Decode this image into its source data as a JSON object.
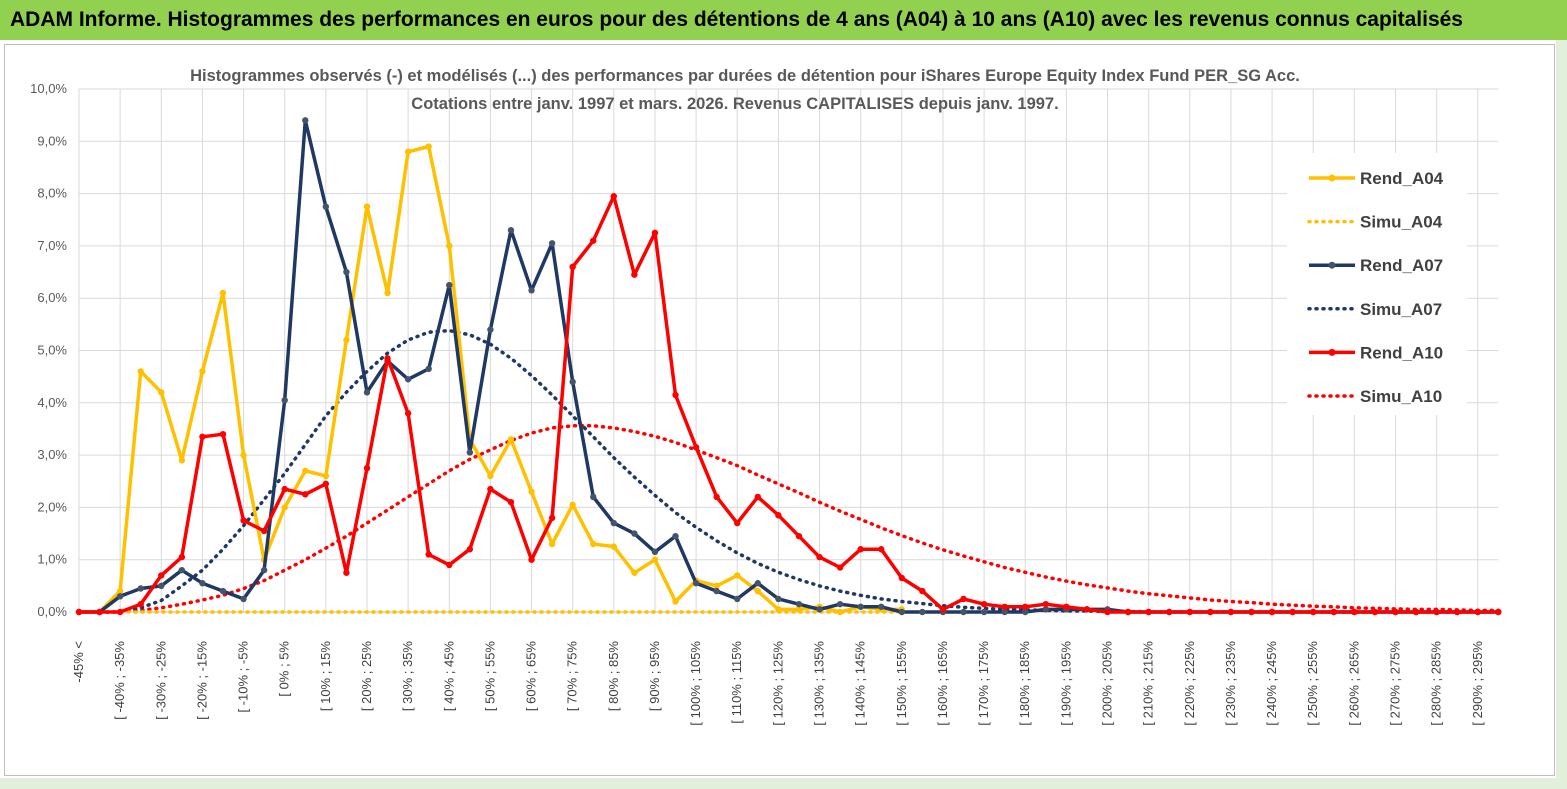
{
  "header": {
    "title": "ADAM Informe. Histogrammes des performances en euros pour des détentions de 4 ans (A04) à 10 ans (A10) avec les revenus connus capitalisés"
  },
  "colors": {
    "header_bg": "#92d050",
    "a04": "#ffc000",
    "a07": "#1f3864",
    "a10": "#ff0000",
    "grid": "#d9d9d9"
  },
  "chart_data": {
    "type": "line",
    "title": "Histogrammes observés (-) et modélisés (...) des performances par durées de détention pour iShares Europe Equity Index Fund PER_SG Acc.",
    "subtitle": "Cotations entre janv. 1997 et mars. 2026. Revenus CAPITALISES depuis janv. 1997.",
    "ylim": [
      0,
      10
    ],
    "yticks": [
      "0,0%",
      "1,0%",
      "2,0%",
      "3,0%",
      "4,0%",
      "5,0%",
      "6,0%",
      "7,0%",
      "8,0%",
      "9,0%",
      "10,0%"
    ],
    "x_tick_labels": [
      "-45% <",
      "[ -40% ; -35%",
      "[ -30% ; -25%",
      "[ -20% ; -15%",
      "[ -10% ; -5%",
      "[ 0% ; 5%",
      "[ 10% ; 15%",
      "[ 20% ; 25%",
      "[ 30% ; 35%",
      "[ 40% ; 45%",
      "[ 50% ; 55%",
      "[ 60% ; 65%",
      "[ 70% ; 75%",
      "[ 80% ; 85%",
      "[ 90% ; 95%",
      "[ 100% ; 105%",
      "[ 110% ; 115%",
      "[ 120% ; 125%",
      "[ 130% ; 135%",
      "[ 140% ; 145%",
      "[ 150% ; 155%",
      "[ 160% ; 165%",
      "[ 170% ; 175%",
      "[ 180% ; 185%",
      "[ 190% ; 195%",
      "[ 200% ; 205%",
      "[ 210% ; 215%",
      "[ 220% ; 225%",
      "[ 230% ; 235%",
      "[ 240% ; 245%",
      "[ 250% ; 255%",
      "[ 260% ; 265%",
      "[ 270% ; 275%",
      "[ 280% ; 285%",
      "[ 290% ; 295%"
    ],
    "x_range_pct": [
      -45,
      300
    ],
    "bin_width_pct": 5,
    "grid": true,
    "legend_position": "right",
    "series": [
      {
        "name": "Rend_A04",
        "style": "solid",
        "markers": true,
        "color": "#ffc000",
        "values": [
          0,
          0,
          0.4,
          4.6,
          4.2,
          2.9,
          4.6,
          6.1,
          3.0,
          1.0,
          2.0,
          2.7,
          2.6,
          5.2,
          7.75,
          6.1,
          8.8,
          8.9,
          7.0,
          3.3,
          2.6,
          3.3,
          2.3,
          1.3,
          2.05,
          1.3,
          1.25,
          0.75,
          1.0,
          0.2,
          0.6,
          0.5,
          0.7,
          0.4,
          0.05,
          0.05,
          0.1,
          0,
          0.1,
          0.05,
          0.05
        ]
      },
      {
        "name": "Simu_A04",
        "style": "dotted",
        "markers": false,
        "color": "#ffc000",
        "values": [
          0,
          0,
          0,
          0,
          0,
          0,
          0,
          0,
          0,
          0,
          0,
          0,
          0,
          0,
          0,
          0,
          0,
          0,
          0,
          0,
          0,
          0,
          0,
          0,
          0,
          0,
          0,
          0,
          0,
          0,
          0,
          0,
          0,
          0,
          0,
          0,
          0,
          0,
          0,
          0,
          0
        ]
      },
      {
        "name": "Rend_A07",
        "style": "solid",
        "markers": true,
        "color": "#1f3864",
        "values": [
          0,
          0,
          0.3,
          0.45,
          0.5,
          0.8,
          0.55,
          0.4,
          0.25,
          0.8,
          4.05,
          9.4,
          7.75,
          6.5,
          4.2,
          4.8,
          4.45,
          4.65,
          6.25,
          3.05,
          5.4,
          7.3,
          6.15,
          7.05,
          4.4,
          2.2,
          1.7,
          1.5,
          1.15,
          1.45,
          0.55,
          0.4,
          0.25,
          0.55,
          0.25,
          0.15,
          0.05,
          0.15,
          0.1,
          0.1,
          0,
          0,
          0,
          0,
          0,
          0,
          0,
          0.05,
          0.05,
          0.05,
          0.05,
          0,
          0,
          0,
          0,
          0,
          0,
          0,
          0,
          0,
          0,
          0,
          0,
          0,
          0,
          0,
          0,
          0,
          0,
          0
        ]
      },
      {
        "name": "Simu_A07",
        "style": "dotted",
        "markers": false,
        "color": "#1f3864",
        "values": [
          0,
          0,
          0,
          0.08,
          0.22,
          0.5,
          0.8,
          1.2,
          1.65,
          2.15,
          2.65,
          3.2,
          3.75,
          4.2,
          4.6,
          4.95,
          5.2,
          5.35,
          5.38,
          5.3,
          5.12,
          4.85,
          4.52,
          4.15,
          3.75,
          3.35,
          2.95,
          2.58,
          2.23,
          1.9,
          1.62,
          1.36,
          1.13,
          0.93,
          0.76,
          0.62,
          0.5,
          0.4,
          0.32,
          0.25,
          0.2,
          0.16,
          0.12,
          0.09,
          0.07,
          0.05,
          0.04,
          0.03,
          0.02,
          0.02,
          0.01,
          0.01,
          0,
          0,
          0,
          0,
          0,
          0,
          0,
          0,
          0,
          0,
          0,
          0,
          0,
          0,
          0,
          0,
          0,
          0
        ]
      },
      {
        "name": "Rend_A10",
        "style": "solid",
        "markers": true,
        "color": "#ff0000",
        "values": [
          0,
          0,
          0,
          0.15,
          0.7,
          1.05,
          3.35,
          3.4,
          1.75,
          1.55,
          2.35,
          2.25,
          2.45,
          0.75,
          2.75,
          4.85,
          3.8,
          1.1,
          0.9,
          1.2,
          2.35,
          2.1,
          1.0,
          1.8,
          6.6,
          7.1,
          7.95,
          6.45,
          7.25,
          4.15,
          3.15,
          2.2,
          1.7,
          2.2,
          1.85,
          1.45,
          1.05,
          0.85,
          1.2,
          1.2,
          0.65,
          0.4,
          0.05,
          0.25,
          0.15,
          0.1,
          0.1,
          0.15,
          0.1,
          0.05,
          0,
          0,
          0,
          0,
          0,
          0,
          0,
          0,
          0,
          0,
          0,
          0,
          0,
          0,
          0,
          0,
          0,
          0,
          0,
          0
        ]
      },
      {
        "name": "Simu_A10",
        "style": "dotted",
        "markers": false,
        "color": "#ff0000",
        "values": [
          0,
          0,
          0,
          0.03,
          0.08,
          0.15,
          0.23,
          0.32,
          0.45,
          0.6,
          0.8,
          1.0,
          1.22,
          1.45,
          1.7,
          1.95,
          2.2,
          2.45,
          2.7,
          2.92,
          3.1,
          3.28,
          3.42,
          3.52,
          3.56,
          3.56,
          3.52,
          3.45,
          3.36,
          3.24,
          3.1,
          2.95,
          2.8,
          2.62,
          2.45,
          2.28,
          2.1,
          1.93,
          1.77,
          1.61,
          1.46,
          1.32,
          1.19,
          1.07,
          0.96,
          0.85,
          0.76,
          0.67,
          0.59,
          0.52,
          0.46,
          0.4,
          0.35,
          0.31,
          0.27,
          0.23,
          0.2,
          0.18,
          0.15,
          0.13,
          0.11,
          0.1,
          0.08,
          0.07,
          0.06,
          0.05,
          0.05,
          0.04,
          0.03,
          0.03
        ]
      }
    ]
  }
}
